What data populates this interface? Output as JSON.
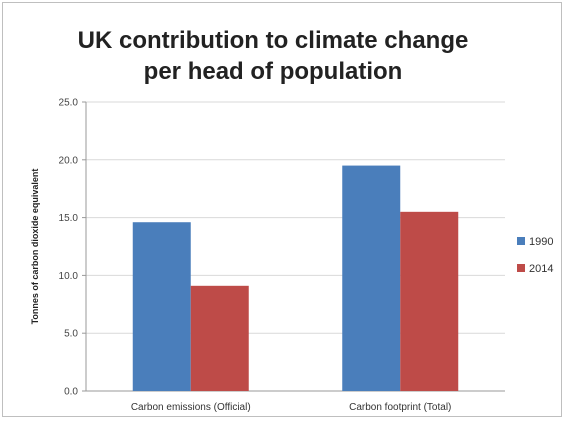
{
  "chart_data": {
    "type": "bar",
    "title": "UK contribution to climate change per head of population",
    "xlabel": "",
    "ylabel": "Tonnes of carbon dioxide equivalent",
    "categories": [
      "Carbon emissions (Official)",
      "Carbon footprint (Total)"
    ],
    "series": [
      {
        "name": "1990",
        "values": [
          14.6,
          19.5
        ],
        "color": "#4a7ebb"
      },
      {
        "name": "2014",
        "values": [
          9.1,
          15.5
        ],
        "color": "#be4b48"
      }
    ],
    "ylim": [
      0,
      25
    ],
    "yticks": [
      "0.0",
      "5.0",
      "10.0",
      "15.0",
      "20.0",
      "25.0"
    ],
    "grid": true,
    "legend": "right"
  }
}
